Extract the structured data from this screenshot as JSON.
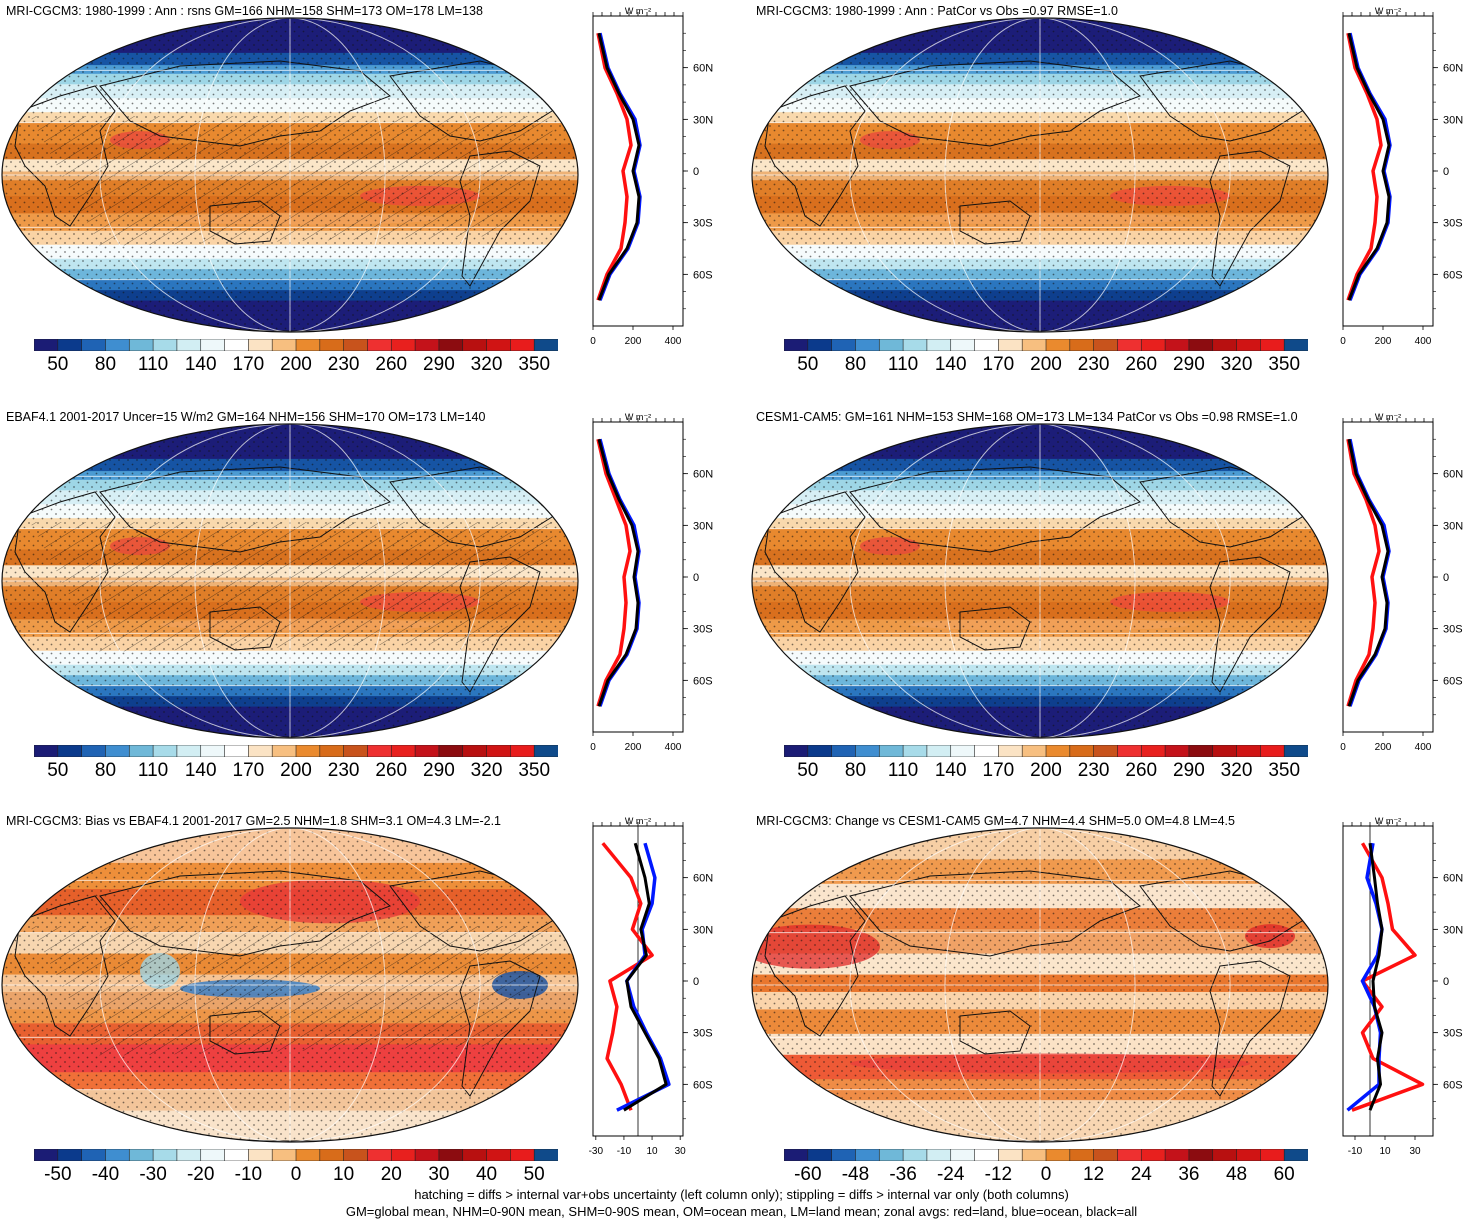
{
  "panels": [
    {
      "id": "p1",
      "title": "MRI-CGCM3: 1980-1999 : Ann : rsns GM=166 NHM=158 SHM=173 OM=178 LM=138",
      "field": "abs",
      "hatch": true,
      "colorbar": {
        "ticks": [
          "50",
          "80",
          "110",
          "140",
          "170",
          "200",
          "230",
          "260",
          "290",
          "320",
          "350"
        ]
      },
      "zonal": {
        "unit": "W m⁻²",
        "xticks": [
          "0",
          "200",
          "400"
        ],
        "xlim": [
          0,
          450
        ],
        "lat_ticks": [
          "60N",
          "30N",
          "0",
          "30S",
          "60S"
        ]
      }
    },
    {
      "id": "p2",
      "title": "MRI-CGCM3: 1980-1999 : Ann : PatCor vs Obs =0.97 RMSE=1.0",
      "field": "abs",
      "hatch": false,
      "colorbar": {
        "ticks": [
          "50",
          "80",
          "110",
          "140",
          "170",
          "200",
          "230",
          "260",
          "290",
          "320",
          "350"
        ]
      },
      "zonal": {
        "unit": "W m⁻²",
        "xticks": [
          "0",
          "200",
          "400"
        ],
        "xlim": [
          0,
          450
        ],
        "lat_ticks": [
          "60N",
          "30N",
          "0",
          "30S",
          "60S"
        ]
      }
    },
    {
      "id": "p3",
      "title": "EBAF4.1 2001-2017 Uncer=15 W/m2 GM=164 NHM=156 SHM=170 OM=173 LM=140",
      "field": "abs",
      "hatch": true,
      "colorbar": {
        "ticks": [
          "50",
          "80",
          "110",
          "140",
          "170",
          "200",
          "230",
          "260",
          "290",
          "320",
          "350"
        ]
      },
      "zonal": {
        "unit": "W m⁻²",
        "xticks": [
          "0",
          "200",
          "400"
        ],
        "xlim": [
          0,
          450
        ],
        "lat_ticks": [
          "60N",
          "30N",
          "0",
          "30S",
          "60S"
        ]
      }
    },
    {
      "id": "p4",
      "title": "CESM1-CAM5: GM=161 NHM=153 SHM=168 OM=173 LM=134 PatCor vs Obs =0.98 RMSE=1.0",
      "field": "abs",
      "hatch": false,
      "colorbar": {
        "ticks": [
          "50",
          "80",
          "110",
          "140",
          "170",
          "200",
          "230",
          "260",
          "290",
          "320",
          "350"
        ]
      },
      "zonal": {
        "unit": "W m⁻²",
        "xticks": [
          "0",
          "200",
          "400"
        ],
        "xlim": [
          0,
          450
        ],
        "lat_ticks": [
          "60N",
          "30N",
          "0",
          "30S",
          "60S"
        ]
      }
    },
    {
      "id": "p5",
      "title": "MRI-CGCM3: Bias vs EBAF4.1 2001-2017 GM=2.5 NHM=1.8 SHM=3.1 OM=4.3 LM=-2.1",
      "field": "bias",
      "hatch": true,
      "colorbar": {
        "ticks": [
          "-50",
          "-40",
          "-30",
          "-20",
          "-10",
          "0",
          "10",
          "20",
          "30",
          "40",
          "50"
        ]
      },
      "zonal": {
        "unit": "W m⁻²",
        "xticks": [
          "-30",
          "-10",
          "10",
          "30"
        ],
        "xlim": [
          -32,
          32
        ],
        "lat_ticks": [
          "60N",
          "30N",
          "0",
          "30S",
          "60S"
        ]
      }
    },
    {
      "id": "p6",
      "title": "MRI-CGCM3: Change vs CESM1-CAM5 GM=4.7 NHM=4.4 SHM=5.0 OM=4.8 LM=4.5",
      "field": "change",
      "hatch": false,
      "colorbar": {
        "ticks": [
          "-60",
          "-48",
          "-36",
          "-24",
          "-12",
          "0",
          "12",
          "24",
          "36",
          "48",
          "60"
        ]
      },
      "zonal": {
        "unit": "W m⁻²",
        "xticks": [
          "-10",
          "10",
          "30"
        ],
        "xlim": [
          -18,
          42
        ],
        "lat_ticks": [
          "60N",
          "30N",
          "0",
          "30S",
          "60S"
        ]
      }
    }
  ],
  "colors": {
    "abs": [
      "#1b1c75",
      "#0b3a8c",
      "#1f63b4",
      "#3f8ed0",
      "#6fb8d8",
      "#a7dbe9",
      "#d2eef3",
      "#eef8fa",
      "#ffffff",
      "#fbe3c4",
      "#f7bf80",
      "#ea8a2e",
      "#d86c1a",
      "#c8531c",
      "#ee3030",
      "#e8201e",
      "#c4121a",
      "#8c0c10",
      "#b81010",
      "#d01414",
      "#e81c1c",
      "#0f4a8a"
    ],
    "diverging": [
      "#1b1c75",
      "#0b3a8c",
      "#1f63b4",
      "#3f8ed0",
      "#6fb8d8",
      "#a7dbe9",
      "#d2eef3",
      "#eef8fa",
      "#ffffff",
      "#fbe3c4",
      "#f7bf80",
      "#ea8a2e",
      "#d86c1a",
      "#c8531c",
      "#ee3030",
      "#e8201e",
      "#c4121a",
      "#8c0c10",
      "#b81010",
      "#d01414",
      "#e81c1c",
      "#0f4a8a"
    ],
    "land": "#ff1010",
    "ocean": "#0018ff",
    "all": "#000000"
  },
  "chart_data": [
    {
      "type": "heatmap",
      "subtype": "global-map-with-zonal-mean",
      "title": "MRI-CGCM3: 1980-1999 : Ann : rsns GM=166 NHM=158 SHM=173 OM=178 LM=138",
      "zonal_mean": {
        "lat": [
          80,
          60,
          45,
          30,
          15,
          0,
          -15,
          -30,
          -45,
          -60,
          -75
        ],
        "all": [
          30,
          70,
          130,
          200,
          230,
          200,
          230,
          220,
          170,
          80,
          30
        ],
        "land": [
          25,
          60,
          120,
          170,
          190,
          150,
          170,
          160,
          140,
          70,
          25
        ],
        "ocean": [
          35,
          75,
          135,
          210,
          235,
          205,
          235,
          225,
          175,
          85,
          35
        ]
      }
    },
    {
      "type": "heatmap",
      "subtype": "global-map-with-zonal-mean",
      "title": "MRI-CGCM3: 1980-1999 : Ann : PatCor vs Obs =0.97 RMSE=1.0",
      "zonal_mean": {
        "lat": [
          80,
          60,
          45,
          30,
          15,
          0,
          -15,
          -30,
          -45,
          -60,
          -75
        ],
        "all": [
          30,
          70,
          130,
          200,
          230,
          200,
          230,
          220,
          170,
          80,
          30
        ],
        "land": [
          25,
          60,
          120,
          170,
          190,
          150,
          170,
          160,
          140,
          70,
          25
        ],
        "ocean": [
          35,
          75,
          135,
          210,
          235,
          205,
          235,
          225,
          175,
          85,
          35
        ]
      }
    },
    {
      "type": "heatmap",
      "subtype": "global-map-with-zonal-mean",
      "title": "EBAF4.1 2001-2017 Uncer=15 W/m2 GM=164 NHM=156 SHM=170 OM=173 LM=140",
      "zonal_mean": {
        "lat": [
          80,
          60,
          45,
          30,
          15,
          0,
          -15,
          -30,
          -45,
          -60,
          -75
        ],
        "all": [
          30,
          75,
          130,
          195,
          225,
          205,
          225,
          215,
          165,
          75,
          30
        ],
        "land": [
          25,
          65,
          115,
          165,
          185,
          155,
          165,
          155,
          135,
          65,
          25
        ],
        "ocean": [
          35,
          80,
          135,
          205,
          230,
          210,
          230,
          220,
          170,
          80,
          35
        ]
      }
    },
    {
      "type": "heatmap",
      "subtype": "global-map-with-zonal-mean",
      "title": "CESM1-CAM5: GM=161 NHM=153 SHM=168 OM=173 LM=134 PatCor vs Obs =0.98 RMSE=1.0",
      "zonal_mean": {
        "lat": [
          80,
          60,
          45,
          30,
          15,
          0,
          -15,
          -30,
          -45,
          -60,
          -75
        ],
        "all": [
          30,
          65,
          125,
          195,
          225,
          195,
          220,
          210,
          160,
          75,
          30
        ],
        "land": [
          25,
          55,
          115,
          160,
          180,
          145,
          160,
          150,
          130,
          65,
          25
        ],
        "ocean": [
          35,
          70,
          130,
          205,
          230,
          200,
          225,
          215,
          165,
          80,
          35
        ]
      }
    },
    {
      "type": "heatmap",
      "subtype": "global-map-with-zonal-mean",
      "title": "MRI-CGCM3: Bias vs EBAF4.1 2001-2017 GM=2.5 NHM=1.8 SHM=3.1 OM=4.3 LM=-2.1",
      "zonal_mean": {
        "lat": [
          80,
          60,
          45,
          30,
          15,
          0,
          -15,
          -30,
          -45,
          -60,
          -75
        ],
        "all": [
          -2,
          5,
          8,
          2,
          6,
          -8,
          -5,
          5,
          15,
          20,
          -10
        ],
        "land": [
          -25,
          -5,
          2,
          -4,
          10,
          -20,
          -15,
          -18,
          -22,
          -12,
          -5
        ],
        "ocean": [
          5,
          12,
          10,
          3,
          5,
          -8,
          -3,
          6,
          16,
          22,
          -15
        ]
      }
    },
    {
      "type": "heatmap",
      "subtype": "global-map-with-zonal-mean",
      "title": "MRI-CGCM3: Change vs CESM1-CAM5 GM=4.7 NHM=4.4 SHM=5.0 OM=4.8 LM=4.5",
      "zonal_mean": {
        "lat": [
          80,
          60,
          45,
          30,
          15,
          0,
          -15,
          -30,
          -45,
          -60,
          -75
        ],
        "all": [
          0,
          3,
          5,
          8,
          6,
          2,
          3,
          8,
          5,
          7,
          0
        ],
        "land": [
          -5,
          8,
          12,
          15,
          30,
          -5,
          8,
          -5,
          2,
          35,
          -12
        ],
        "ocean": [
          2,
          -2,
          4,
          8,
          5,
          -5,
          3,
          7,
          6,
          6,
          -15
        ]
      }
    }
  ],
  "footnote": {
    "line1": "hatching = diffs > internal var+obs uncertainty (left column only); stippling = diffs > internal var only (both columns)",
    "line2": "GM=global mean, NHM=0-90N mean, SHM=0-90S mean, OM=ocean mean, LM=land mean; zonal avgs: red=land, blue=ocean, black=all"
  }
}
